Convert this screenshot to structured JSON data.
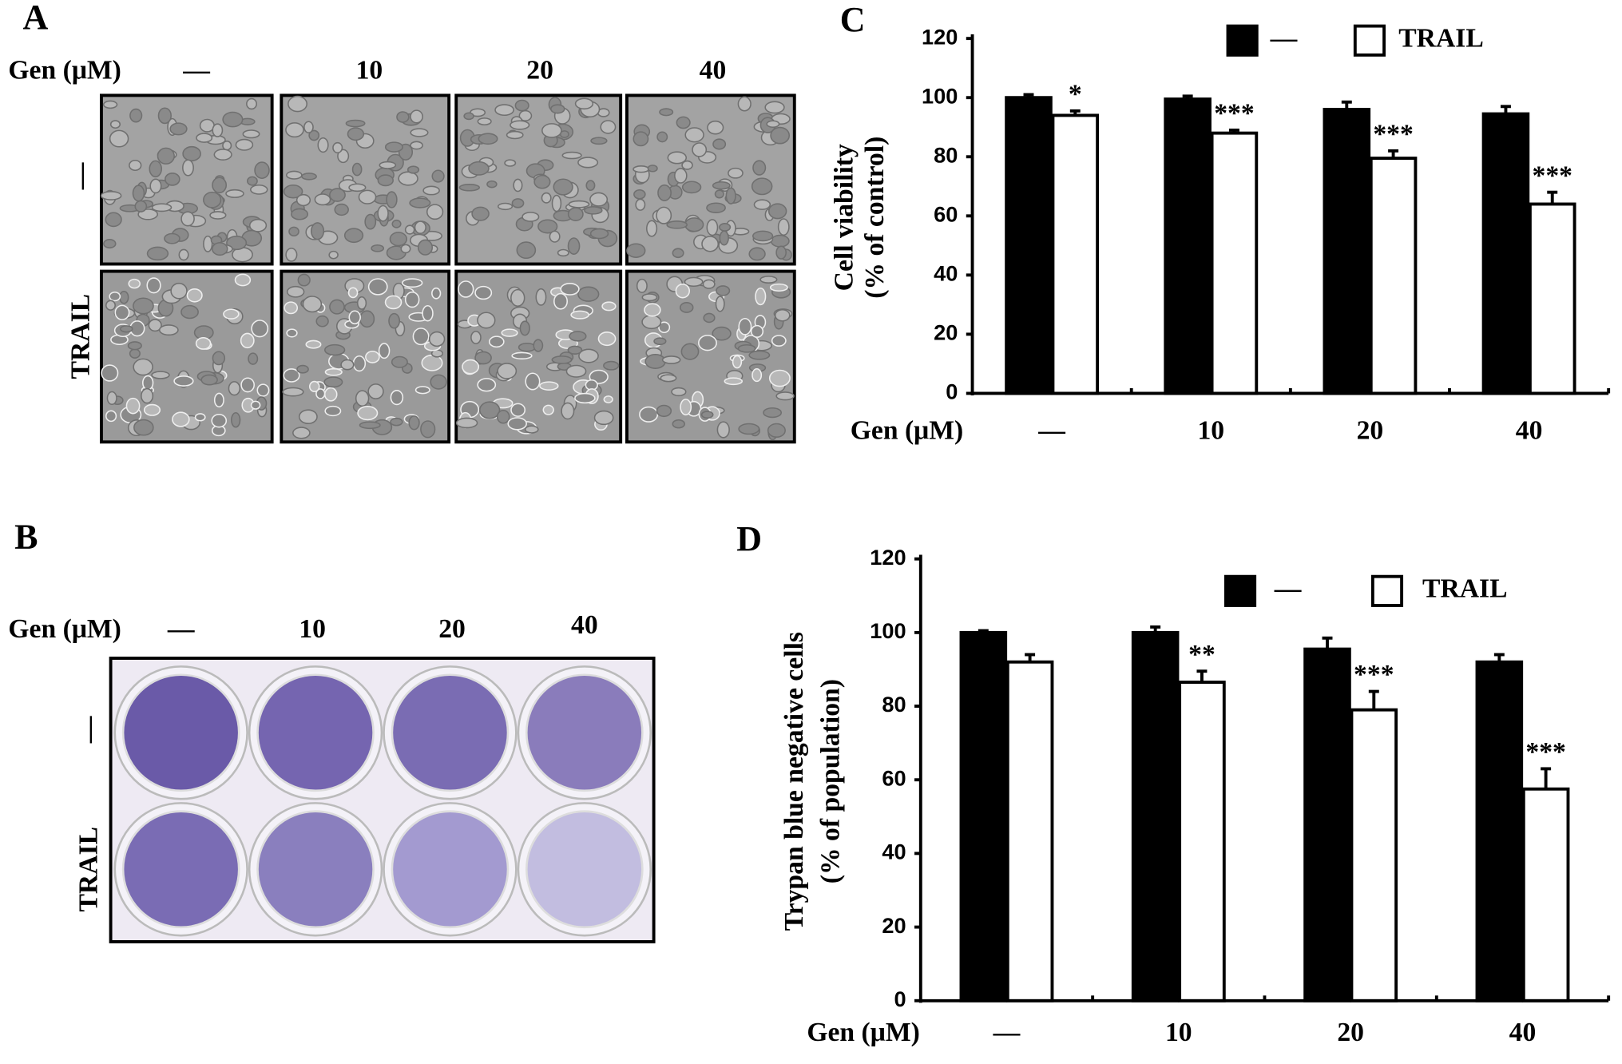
{
  "panel_a": {
    "label": "A",
    "x_label": "Gen (μM)",
    "columns": [
      "—",
      "10",
      "20",
      "40"
    ],
    "rows": [
      "—",
      "TRAIL"
    ]
  },
  "panel_b": {
    "label": "B",
    "x_label": "Gen (μM)",
    "columns": [
      "—",
      "10",
      "20",
      "40"
    ],
    "rows": [
      "—",
      "TRAIL"
    ]
  },
  "chart_data": [
    {
      "type": "bar",
      "panel_label": "C",
      "ylabel": [
        "Cell viability",
        "(% of control)"
      ],
      "xlabel": "Gen (μM)",
      "categories": [
        "—",
        "10",
        "20",
        "40"
      ],
      "series": [
        {
          "name": "—",
          "color": "#000000",
          "values": [
            100,
            99.5,
            96,
            94.5
          ],
          "errors": [
            1,
            1,
            2.5,
            2.5
          ],
          "significance": [
            null,
            null,
            null,
            null
          ]
        },
        {
          "name": "TRAIL",
          "color": "#ffffff",
          "values": [
            94,
            88,
            79.5,
            64
          ],
          "errors": [
            1.5,
            1,
            2.5,
            4
          ],
          "significance": [
            "*",
            "***",
            "***",
            "***"
          ]
        }
      ],
      "ylim": [
        0,
        120
      ],
      "yticks": [
        0,
        20,
        40,
        60,
        80,
        100,
        120
      ],
      "legend": "top-right"
    },
    {
      "type": "bar",
      "panel_label": "D",
      "ylabel": [
        "Trypan blue negative cells",
        "(% of population)"
      ],
      "xlabel": "Gen (μM)",
      "categories": [
        "—",
        "10",
        "20",
        "40"
      ],
      "series": [
        {
          "name": "—",
          "color": "#000000",
          "values": [
            100,
            100,
            95.5,
            92
          ],
          "errors": [
            0.5,
            1.5,
            3,
            2
          ],
          "significance": [
            null,
            null,
            null,
            null
          ]
        },
        {
          "name": "TRAIL",
          "color": "#ffffff",
          "values": [
            92,
            86.5,
            79,
            57.5
          ],
          "errors": [
            2,
            3,
            5,
            5.5
          ],
          "significance": [
            null,
            "**",
            "***",
            "***"
          ]
        }
      ],
      "ylim": [
        0,
        120
      ],
      "yticks": [
        0,
        20,
        40,
        60,
        80,
        100,
        120
      ],
      "legend": "top-right"
    }
  ]
}
